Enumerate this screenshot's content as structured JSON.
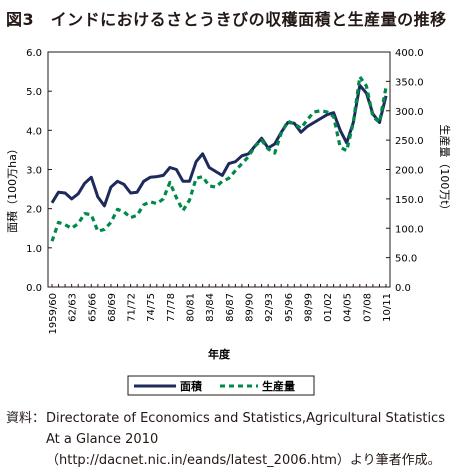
{
  "title": "図3　インドにおけるさとうきびの収穫面積と生産量の推移",
  "chart_data": {
    "type": "line",
    "xlabel": "年度",
    "ylabel_left": "面積（100万ha）",
    "ylabel_right": "生産量（100万t）",
    "ylim_left": [
      0,
      6
    ],
    "ylim_right": [
      0,
      400
    ],
    "yticks_left": [
      "0.0",
      "1.0",
      "2.0",
      "3.0",
      "4.0",
      "5.0",
      "6.0"
    ],
    "yticks_right": [
      "0.0",
      "50.0",
      "100.0",
      "150.0",
      "200.0",
      "250.0",
      "300.0",
      "350.0",
      "400.0"
    ],
    "grid": false,
    "legend_position": "bottom",
    "x": [
      "1959/60",
      "60/61",
      "61/62",
      "62/63",
      "63/64",
      "64/65",
      "65/66",
      "66/67",
      "67/68",
      "68/69",
      "69/70",
      "70/71",
      "71/72",
      "72/73",
      "73/74",
      "74/75",
      "75/76",
      "76/77",
      "77/78",
      "78/79",
      "79/80",
      "80/81",
      "81/82",
      "82/83",
      "83/84",
      "84/85",
      "85/86",
      "86/87",
      "87/88",
      "88/89",
      "89/90",
      "90/91",
      "91/92",
      "92/93",
      "93/94",
      "94/95",
      "95/96",
      "96/97",
      "97/98",
      "98/99",
      "99/00",
      "00/01",
      "01/02",
      "02/03",
      "03/04",
      "04/05",
      "05/06",
      "06/07",
      "07/08",
      "08/09",
      "09/10",
      "10/11"
    ],
    "xticks": [
      "1959/60",
      "62/63",
      "65/66",
      "68/69",
      "71/72",
      "74/75",
      "77/78",
      "80/81",
      "83/84",
      "86/87",
      "89/90",
      "92/93",
      "95/96",
      "98/99",
      "01/02",
      "04/05",
      "07/08",
      "10/11"
    ],
    "series": [
      {
        "name": "面積",
        "axis": "left",
        "color": "#1f2a5c",
        "values": [
          2.15,
          2.42,
          2.4,
          2.25,
          2.38,
          2.65,
          2.8,
          2.3,
          2.07,
          2.55,
          2.7,
          2.62,
          2.4,
          2.42,
          2.7,
          2.8,
          2.82,
          2.85,
          3.05,
          3.0,
          2.7,
          2.7,
          3.2,
          3.4,
          3.05,
          2.95,
          2.85,
          3.15,
          3.2,
          3.35,
          3.4,
          3.6,
          3.8,
          3.55,
          3.65,
          3.95,
          4.2,
          4.18,
          3.95,
          4.1,
          4.2,
          4.3,
          4.4,
          4.45,
          4.0,
          3.68,
          4.2,
          5.15,
          4.95,
          4.42,
          4.2,
          4.88
        ]
      },
      {
        "name": "生産量",
        "axis": "right",
        "color": "#008a4a",
        "values": [
          78,
          110,
          106,
          100,
          108,
          125,
          123,
          95,
          98,
          110,
          132,
          128,
          118,
          122,
          140,
          145,
          142,
          150,
          178,
          152,
          130,
          148,
          185,
          188,
          172,
          170,
          180,
          185,
          198,
          210,
          222,
          240,
          250,
          235,
          228,
          262,
          282,
          278,
          270,
          285,
          298,
          300,
          298,
          290,
          238,
          232,
          280,
          358,
          342,
          290,
          280,
          340
        ]
      }
    ]
  },
  "source": {
    "label": "資料：",
    "text": "Directorate of Economics and Statistics,Agricultural Statistics At a Glance 2010（http://dacnet.nic.in/eands/latest_2006.htm）より筆者作成。"
  }
}
